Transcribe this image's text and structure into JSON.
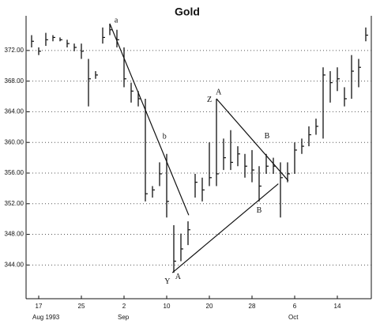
{
  "chart_data": {
    "type": "ohlc",
    "title": "Gold",
    "categories": [
      null,
      "17",
      null,
      null,
      null,
      null,
      null,
      "25",
      null,
      null,
      null,
      null,
      null,
      "2",
      null,
      null,
      null,
      null,
      null,
      "10",
      null,
      null,
      null,
      null,
      null,
      "20",
      null,
      null,
      null,
      null,
      null,
      "28",
      null,
      null,
      null,
      null,
      null,
      "6",
      null,
      null,
      null,
      null,
      null,
      "14",
      null,
      null,
      null,
      null
    ],
    "periods": [
      null,
      "Aug 1993",
      null,
      null,
      null,
      null,
      null,
      null,
      null,
      null,
      null,
      null,
      null,
      "Sep",
      null,
      null,
      null,
      null,
      null,
      null,
      null,
      null,
      null,
      null,
      null,
      null,
      null,
      null,
      null,
      null,
      null,
      null,
      null,
      null,
      null,
      null,
      null,
      "Oct",
      null,
      null,
      null,
      null,
      null,
      null,
      null,
      null,
      null,
      null
    ],
    "high": [
      374.0,
      372.4,
      374.3,
      374.0,
      373.7,
      373.4,
      372.9,
      372.9,
      370.9,
      369.3,
      375.0,
      375.5,
      374.7,
      372.4,
      367.8,
      366.7,
      365.7,
      354.3,
      357.4,
      358.5,
      349.2,
      348.1,
      349.7,
      355.9,
      355.4,
      360.0,
      365.7,
      360.5,
      361.6,
      359.5,
      358.5,
      359.0,
      356.9,
      358.5,
      358.0,
      357.4,
      357.4,
      360.0,
      360.5,
      362.1,
      363.1,
      369.8,
      369.3,
      369.8,
      367.2,
      371.4,
      370.9,
      375.0
    ],
    "low": [
      372.4,
      371.4,
      372.6,
      373.2,
      373.2,
      372.4,
      371.9,
      370.9,
      364.7,
      368.3,
      372.9,
      374.0,
      372.4,
      367.2,
      365.2,
      364.7,
      352.3,
      352.8,
      354.3,
      350.2,
      343.0,
      344.5,
      346.6,
      352.8,
      352.3,
      354.3,
      354.3,
      356.4,
      356.4,
      356.9,
      355.4,
      354.8,
      352.3,
      355.9,
      355.9,
      350.2,
      354.8,
      355.9,
      358.5,
      359.5,
      361.0,
      360.5,
      365.2,
      366.7,
      364.7,
      365.7,
      367.2,
      373.2
    ],
    "close": [
      373.2,
      371.9,
      373.4,
      373.7,
      373.4,
      372.9,
      372.4,
      371.9,
      368.3,
      368.8,
      373.7,
      374.7,
      373.4,
      368.3,
      366.7,
      365.7,
      353.3,
      353.8,
      355.9,
      352.3,
      344.5,
      346.1,
      348.6,
      354.8,
      353.8,
      355.4,
      355.9,
      358.0,
      357.4,
      358.5,
      356.9,
      356.4,
      354.3,
      356.9,
      356.9,
      355.4,
      355.9,
      359.0,
      359.5,
      361.0,
      362.1,
      368.8,
      367.8,
      368.3,
      365.7,
      369.3,
      369.8,
      374.0
    ],
    "color": "#111111",
    "ylim": [
      339.6,
      375.7
    ],
    "yticks": [
      {
        "value": 344,
        "label": "344.00"
      },
      {
        "value": 348,
        "label": "348.00"
      },
      {
        "value": 352,
        "label": "352.00"
      },
      {
        "value": 356,
        "label": "356.00"
      },
      {
        "value": 360,
        "label": "360.00"
      },
      {
        "value": 364,
        "label": "364.00"
      },
      {
        "value": 368,
        "label": "368.00"
      },
      {
        "value": 372,
        "label": "372.00"
      }
    ],
    "grid": true,
    "trendlines": [
      {
        "from": [
          11,
          375.5
        ],
        "to": [
          22.1,
          350.5
        ]
      },
      {
        "from": [
          19.8,
          343.0
        ],
        "to": [
          34.7,
          354.6
        ]
      },
      {
        "from": [
          26,
          365.7
        ],
        "to": [
          36.1,
          355.0
        ]
      }
    ],
    "annotations": [
      {
        "text": "a",
        "x": 11.9,
        "y": 375.9
      },
      {
        "text": "b",
        "x": 18.7,
        "y": 360.7
      },
      {
        "text": "Z",
        "x": 25,
        "y": 365.5
      },
      {
        "text": "A",
        "x": 26.3,
        "y": 366.5
      },
      {
        "text": "B",
        "x": 33.1,
        "y": 360.8
      },
      {
        "text": "B",
        "x": 32,
        "y": 351.1
      },
      {
        "text": "Y",
        "x": 19.1,
        "y": 341.8
      },
      {
        "text": "A",
        "x": 20.6,
        "y": 342.4
      }
    ]
  }
}
